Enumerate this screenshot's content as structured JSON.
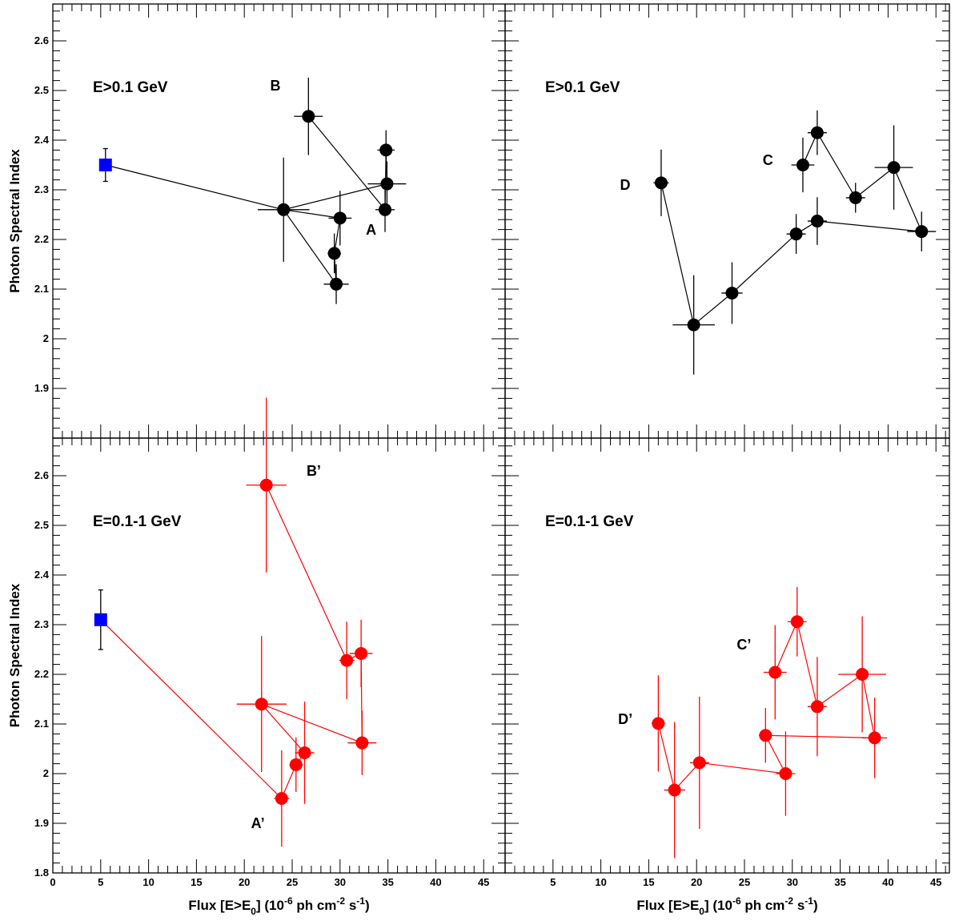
{
  "figure": {
    "ylabel": "Photon Spectral Index",
    "xlabel": "Flux [E>E",
    "xlabel_sub": "0",
    "xlabel_tail": "] (10",
    "xlabel_exp1": "-6",
    "xlabel_mid": " ph cm",
    "xlabel_exp2": "-2",
    "xlabel_mid2": " s",
    "xlabel_exp3": "-1",
    "xlabel_end": ")"
  },
  "colors": {
    "black": "#000000",
    "red": "#ff0000",
    "blue": "#0000ff"
  },
  "chart_data": [
    {
      "id": "top-left",
      "type": "scatter",
      "title": "E>0.1 GeV",
      "xlim": [
        0,
        47
      ],
      "ylim": [
        1.8,
        2.7
      ],
      "xticks": [],
      "yticks": [
        "1.9",
        "2",
        "2.1",
        "2.2",
        "2.3",
        "2.4",
        "2.5",
        "2.6"
      ],
      "color": "black",
      "points": [
        {
          "x": 5.5,
          "y": 2.35,
          "xerr": 0,
          "yerr": 0.033,
          "marker": "square"
        },
        {
          "x": 24.1,
          "y": 2.26,
          "xerr": 2.7,
          "yerr": 0.105,
          "marker": "circle"
        },
        {
          "x": 30.0,
          "y": 2.243,
          "xerr": 1.2,
          "yerr": 0.055,
          "marker": "circle"
        },
        {
          "x": 29.4,
          "y": 2.172,
          "xerr": 0.7,
          "yerr": 0.04,
          "marker": "circle"
        },
        {
          "x": 29.6,
          "y": 2.11,
          "xerr": 1.3,
          "yerr": 0.04,
          "marker": "circle"
        },
        {
          "x": 24.1,
          "y": 2.26,
          "xerr": 0,
          "yerr": 0,
          "marker": "none"
        },
        {
          "x": 34.9,
          "y": 2.312,
          "xerr": 2.0,
          "yerr": 0.045,
          "marker": "circle"
        },
        {
          "x": 34.8,
          "y": 2.38,
          "xerr": 0.9,
          "yerr": 0.04,
          "marker": "circle"
        },
        {
          "x": 34.7,
          "y": 2.26,
          "xerr": 1.0,
          "yerr": 0.045,
          "marker": "circle"
        },
        {
          "x": 26.7,
          "y": 2.448,
          "xerr": 1.5,
          "yerr": 0.078,
          "marker": "circle"
        }
      ],
      "annotations": [
        {
          "text": "B",
          "x": 22.7,
          "y": 2.5
        },
        {
          "text": "A",
          "x": 32.7,
          "y": 2.21
        }
      ]
    },
    {
      "id": "top-right",
      "type": "scatter",
      "title": "E>0.1 GeV",
      "xlim": [
        0,
        47
      ],
      "ylim": [
        1.8,
        2.7
      ],
      "xticks": [],
      "yticks": [],
      "color": "black",
      "points": [
        {
          "x": 16.3,
          "y": 2.314,
          "xerr": 0.8,
          "yerr": 0.067,
          "marker": "circle"
        },
        {
          "x": 19.7,
          "y": 2.028,
          "xerr": 2.2,
          "yerr": 0.1,
          "marker": "circle"
        },
        {
          "x": 23.7,
          "y": 2.092,
          "xerr": 1.1,
          "yerr": 0.062,
          "marker": "circle"
        },
        {
          "x": 30.4,
          "y": 2.211,
          "xerr": 1.0,
          "yerr": 0.04,
          "marker": "circle"
        },
        {
          "x": 32.6,
          "y": 2.237,
          "xerr": 1.0,
          "yerr": 0.048,
          "marker": "circle"
        },
        {
          "x": 43.5,
          "y": 2.216,
          "xerr": 1.5,
          "yerr": 0.04,
          "marker": "circle"
        },
        {
          "x": 40.6,
          "y": 2.345,
          "xerr": 2.0,
          "yerr": 0.085,
          "marker": "circle"
        },
        {
          "x": 36.6,
          "y": 2.284,
          "xerr": 1.0,
          "yerr": 0.03,
          "marker": "circle"
        },
        {
          "x": 32.6,
          "y": 2.415,
          "xerr": 1.0,
          "yerr": 0.045,
          "marker": "circle"
        },
        {
          "x": 31.1,
          "y": 2.35,
          "xerr": 1.2,
          "yerr": 0.055,
          "marker": "circle"
        }
      ],
      "annotations": [
        {
          "text": "D",
          "x": 12.0,
          "y": 2.3
        },
        {
          "text": "C",
          "x": 26.9,
          "y": 2.35
        }
      ]
    },
    {
      "id": "bottom-left",
      "type": "scatter",
      "title": "E=0.1-1 GeV",
      "xlim": [
        0,
        47
      ],
      "ylim": [
        1.8,
        2.7
      ],
      "xticks": [
        "0",
        "5",
        "10",
        "15",
        "20",
        "25",
        "30",
        "35",
        "40",
        "45"
      ],
      "yticks": [
        "1.8",
        "1.9",
        "2",
        "2.1",
        "2.2",
        "2.3",
        "2.4",
        "2.5",
        "2.6"
      ],
      "color": "red",
      "points": [
        {
          "x": 5.0,
          "y": 2.31,
          "xerr": 0,
          "yerr": 0.06,
          "marker": "square"
        },
        {
          "x": 23.9,
          "y": 1.95,
          "xerr": 0.8,
          "yerr": 0.097,
          "marker": "circle"
        },
        {
          "x": 25.4,
          "y": 2.018,
          "xerr": 0.7,
          "yerr": 0.055,
          "marker": "circle"
        },
        {
          "x": 26.3,
          "y": 2.042,
          "xerr": 1.0,
          "yerr": 0.103,
          "marker": "circle"
        },
        {
          "x": 21.8,
          "y": 2.14,
          "xerr": 2.6,
          "yerr": 0.137,
          "marker": "circle"
        },
        {
          "x": 32.3,
          "y": 2.062,
          "xerr": 1.5,
          "yerr": 0.065,
          "marker": "circle"
        },
        {
          "x": 32.2,
          "y": 2.242,
          "xerr": 1.2,
          "yerr": 0.068,
          "marker": "circle"
        },
        {
          "x": 30.7,
          "y": 2.228,
          "xerr": 0.8,
          "yerr": 0.078,
          "marker": "circle"
        },
        {
          "x": 22.3,
          "y": 2.581,
          "xerr": 2.1,
          "yerr": 0.176,
          "marker": "circle"
        }
      ],
      "annotations": [
        {
          "text": "B’",
          "x": 26.5,
          "y": 2.6
        },
        {
          "text": "A’",
          "x": 20.7,
          "y": 1.89
        }
      ]
    },
    {
      "id": "bottom-right",
      "type": "scatter",
      "title": "E=0.1-1 GeV",
      "xlim": [
        0,
        47
      ],
      "ylim": [
        1.8,
        2.7
      ],
      "xticks": [
        "5",
        "10",
        "15",
        "20",
        "25",
        "30",
        "35",
        "40",
        "45"
      ],
      "yticks": [],
      "color": "red",
      "points": [
        {
          "x": 16.0,
          "y": 2.101,
          "xerr": 0.7,
          "yerr": 0.097,
          "marker": "circle"
        },
        {
          "x": 17.7,
          "y": 1.967,
          "xerr": 1.1,
          "yerr": 0.137,
          "marker": "circle"
        },
        {
          "x": 20.3,
          "y": 2.022,
          "xerr": 1.0,
          "yerr": 0.133,
          "marker": "circle"
        },
        {
          "x": 29.3,
          "y": 2.0,
          "xerr": 1.0,
          "yerr": 0.085,
          "marker": "circle"
        },
        {
          "x": 27.2,
          "y": 2.077,
          "xerr": 0.7,
          "yerr": 0.055,
          "marker": "circle"
        },
        {
          "x": 38.6,
          "y": 2.072,
          "xerr": 1.3,
          "yerr": 0.081,
          "marker": "circle"
        },
        {
          "x": 37.3,
          "y": 2.2,
          "xerr": 2.5,
          "yerr": 0.117,
          "marker": "circle"
        },
        {
          "x": 32.6,
          "y": 2.135,
          "xerr": 1.0,
          "yerr": 0.1,
          "marker": "circle"
        },
        {
          "x": 30.5,
          "y": 2.306,
          "xerr": 1.0,
          "yerr": 0.07,
          "marker": "circle"
        },
        {
          "x": 28.2,
          "y": 2.204,
          "xerr": 1.2,
          "yerr": 0.095,
          "marker": "circle"
        }
      ],
      "annotations": [
        {
          "text": "D’",
          "x": 11.8,
          "y": 2.1
        },
        {
          "text": "C’",
          "x": 24.2,
          "y": 2.25
        }
      ]
    }
  ]
}
